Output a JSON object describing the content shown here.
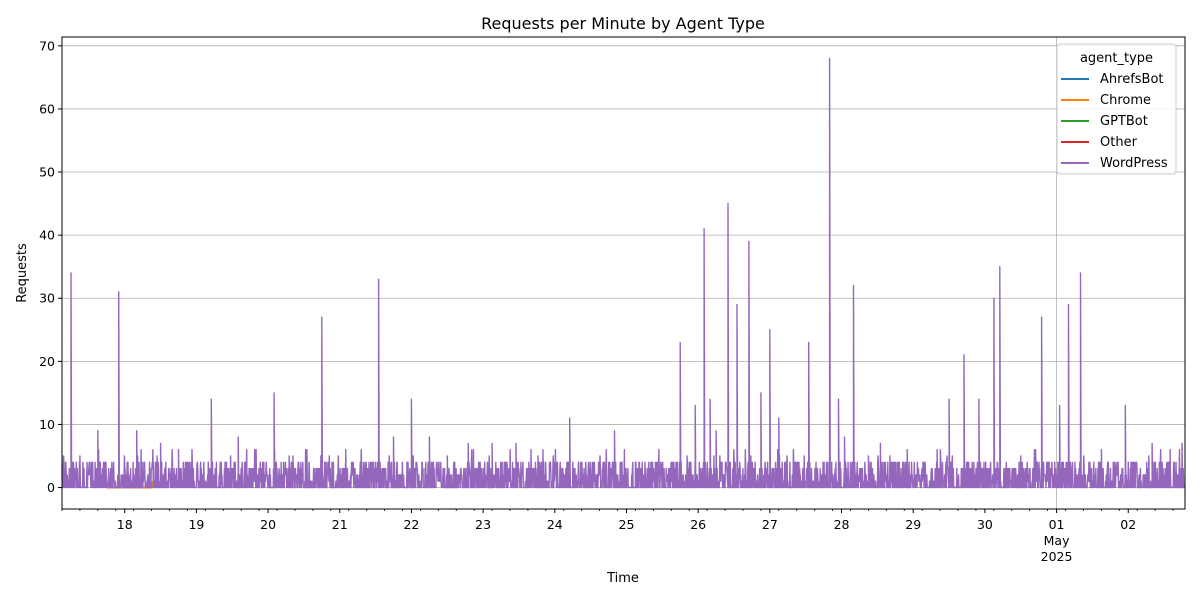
{
  "chart_data": {
    "type": "line",
    "title": "Requests per Minute by Agent Type",
    "xlabel": "Time",
    "ylabel": "Requests",
    "xlim": [
      "2025-04-17T03:00",
      "2025-05-02T19:00"
    ],
    "ylim": [
      -3.4,
      71.4
    ],
    "grid": true,
    "legend": {
      "title": "agent_type",
      "placement": "top-right"
    },
    "y_ticks": [
      0,
      10,
      20,
      30,
      40,
      50,
      60,
      70
    ],
    "x_ticks": [
      {
        "label": "18",
        "value": "2025-04-18"
      },
      {
        "label": "19",
        "value": "2025-04-19"
      },
      {
        "label": "20",
        "value": "2025-04-20"
      },
      {
        "label": "21",
        "value": "2025-04-21"
      },
      {
        "label": "22",
        "value": "2025-04-22"
      },
      {
        "label": "23",
        "value": "2025-04-23"
      },
      {
        "label": "24",
        "value": "2025-04-24"
      },
      {
        "label": "25",
        "value": "2025-04-25"
      },
      {
        "label": "26",
        "value": "2025-04-26"
      },
      {
        "label": "27",
        "value": "2025-04-27"
      },
      {
        "label": "28",
        "value": "2025-04-28"
      },
      {
        "label": "29",
        "value": "2025-04-29"
      },
      {
        "label": "30",
        "value": "2025-04-30"
      },
      {
        "label": "01",
        "sublabel1": "May",
        "sublabel2": "2025",
        "value": "2025-05-01"
      },
      {
        "label": "02",
        "value": "2025-05-02"
      }
    ],
    "series": [
      {
        "name": "AhrefsBot",
        "color": "#1f77b4",
        "points": []
      },
      {
        "name": "Chrome",
        "color": "#ff7f0e",
        "points": [
          [
            "2025-04-17T18:00",
            0
          ],
          [
            "2025-04-17T18:05",
            1
          ],
          [
            "2025-04-17T18:10",
            0
          ],
          [
            "2025-04-18T01:00",
            0
          ],
          [
            "2025-04-18T01:03",
            1
          ],
          [
            "2025-04-18T01:06",
            0
          ],
          [
            "2025-04-18T09:00",
            0
          ],
          [
            "2025-04-18T09:05",
            1
          ],
          [
            "2025-04-18T09:10",
            0
          ]
        ]
      },
      {
        "name": "GPTBot",
        "color": "#2ca02c",
        "points": []
      },
      {
        "name": "Other",
        "color": "#d62728",
        "points": []
      },
      {
        "name": "WordPress",
        "color": "#9467bd",
        "peaks": [
          [
            "2025-04-17T03:00",
            5
          ],
          [
            "2025-04-17T06:00",
            34
          ],
          [
            "2025-04-17T09:00",
            5
          ],
          [
            "2025-04-17T15:00",
            9
          ],
          [
            "2025-04-17T22:00",
            31
          ],
          [
            "2025-04-18T04:00",
            9
          ],
          [
            "2025-04-18T12:00",
            7
          ],
          [
            "2025-04-18T18:00",
            6
          ],
          [
            "2025-04-19T05:00",
            14
          ],
          [
            "2025-04-19T14:00",
            8
          ],
          [
            "2025-04-19T20:00",
            6
          ],
          [
            "2025-04-20T02:00",
            15
          ],
          [
            "2025-04-20T13:00",
            6
          ],
          [
            "2025-04-20T18:00",
            27
          ],
          [
            "2025-04-21T02:00",
            6
          ],
          [
            "2025-04-21T13:00",
            33
          ],
          [
            "2025-04-21T18:00",
            8
          ],
          [
            "2025-04-22T00:00",
            14
          ],
          [
            "2025-04-22T06:00",
            8
          ],
          [
            "2025-04-22T12:00",
            5
          ],
          [
            "2025-04-22T19:00",
            7
          ],
          [
            "2025-04-23T03:00",
            7
          ],
          [
            "2025-04-23T11:00",
            7
          ],
          [
            "2025-04-23T20:00",
            6
          ],
          [
            "2025-04-24T05:00",
            11
          ],
          [
            "2025-04-24T12:00",
            4
          ],
          [
            "2025-04-24T20:00",
            9
          ],
          [
            "2025-04-25T03:00",
            4
          ],
          [
            "2025-04-25T18:00",
            23
          ],
          [
            "2025-04-25T23:00",
            13
          ],
          [
            "2025-04-26T02:00",
            41
          ],
          [
            "2025-04-26T04:00",
            14
          ],
          [
            "2025-04-26T06:00",
            9
          ],
          [
            "2025-04-26T10:00",
            45
          ],
          [
            "2025-04-26T13:00",
            29
          ],
          [
            "2025-04-26T17:00",
            39
          ],
          [
            "2025-04-26T21:00",
            15
          ],
          [
            "2025-04-27T00:00",
            25
          ],
          [
            "2025-04-27T03:00",
            11
          ],
          [
            "2025-04-27T13:00",
            23
          ],
          [
            "2025-04-27T20:00",
            68
          ],
          [
            "2025-04-27T23:00",
            14
          ],
          [
            "2025-04-28T01:00",
            8
          ],
          [
            "2025-04-28T04:00",
            32
          ],
          [
            "2025-04-28T09:00",
            5
          ],
          [
            "2025-04-28T13:00",
            7
          ],
          [
            "2025-04-28T22:00",
            6
          ],
          [
            "2025-04-29T08:00",
            6
          ],
          [
            "2025-04-29T12:00",
            14
          ],
          [
            "2025-04-29T17:00",
            21
          ],
          [
            "2025-04-29T22:00",
            14
          ],
          [
            "2025-04-30T03:00",
            30
          ],
          [
            "2025-04-30T05:00",
            35
          ],
          [
            "2025-04-30T12:00",
            5
          ],
          [
            "2025-04-30T19:00",
            27
          ],
          [
            "2025-05-01T01:00",
            13
          ],
          [
            "2025-05-01T04:00",
            29
          ],
          [
            "2025-05-01T08:00",
            34
          ],
          [
            "2025-05-01T15:00",
            6
          ],
          [
            "2025-05-01T23:00",
            13
          ],
          [
            "2025-05-02T08:00",
            7
          ],
          [
            "2025-05-02T14:00",
            6
          ],
          [
            "2025-05-02T18:00",
            7
          ]
        ]
      }
    ]
  }
}
